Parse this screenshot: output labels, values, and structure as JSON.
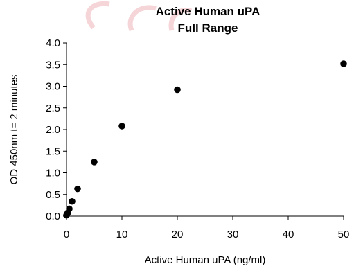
{
  "chart_data": {
    "type": "scatter",
    "title": "Active Human uPA",
    "subtitle": "Full Range",
    "xlabel": "Active Human uPA (ng/ml)",
    "ylabel": "OD 450nm t= 2 minutes",
    "xlim": [
      0,
      50
    ],
    "ylim": [
      0,
      4
    ],
    "xticks": [
      0,
      10,
      20,
      30,
      40,
      50
    ],
    "yticks": [
      "0.0",
      "0.5",
      "1.0",
      "1.5",
      "2.0",
      "2.5",
      "3.0",
      "3.5",
      "4.0"
    ],
    "grid": false,
    "legend": "none",
    "marker_color": "#000000",
    "watermark_color": "#e79aa0",
    "points": [
      {
        "x": 0,
        "y": 0.02
      },
      {
        "x": 0.1,
        "y": 0.05
      },
      {
        "x": 0.25,
        "y": 0.08
      },
      {
        "x": 0.5,
        "y": 0.17
      },
      {
        "x": 1,
        "y": 0.34
      },
      {
        "x": 2,
        "y": 0.63
      },
      {
        "x": 5,
        "y": 1.25
      },
      {
        "x": 10,
        "y": 2.08
      },
      {
        "x": 20,
        "y": 2.92
      },
      {
        "x": 50,
        "y": 3.52
      }
    ]
  }
}
